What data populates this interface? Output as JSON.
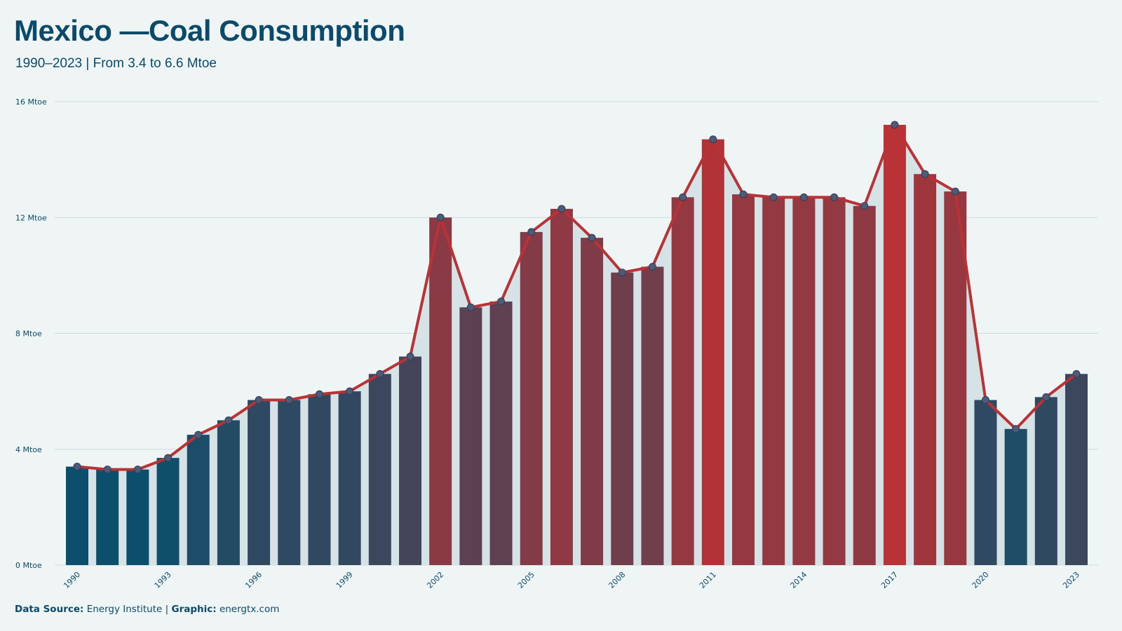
{
  "header": {
    "title": "Mexico —Coal Consumption",
    "subtitle": "1990–2023 | From 3.4 to 6.6 Mtoe"
  },
  "footer": {
    "source_label": "Data Source:",
    "source_value": "Energy Institute",
    "separator": "|",
    "graphic_label": "Graphic:",
    "graphic_value": "energtx.com"
  },
  "colors": {
    "background": "#eff5f5",
    "low": "#0b4f6c",
    "high": "#b83236",
    "line": "#b83236",
    "point_fill": "#4e5a76",
    "area_fill": "#d6e3e6",
    "grid": "#cfd9dc",
    "text": "#0b4a6b"
  },
  "chart_data": {
    "type": "bar",
    "title": "Mexico —Coal Consumption",
    "subtitle": "1990–2023 | From 3.4 to 6.6 Mtoe",
    "unit": "Mtoe",
    "categories": [
      "1990",
      "1991",
      "1992",
      "1993",
      "1994",
      "1995",
      "1996",
      "1997",
      "1998",
      "1999",
      "2000",
      "2001",
      "2002",
      "2003",
      "2004",
      "2005",
      "2006",
      "2007",
      "2008",
      "2009",
      "2010",
      "2011",
      "2012",
      "2013",
      "2014",
      "2015",
      "2016",
      "2017",
      "2018",
      "2019",
      "2020",
      "2021",
      "2022",
      "2023"
    ],
    "values": [
      3.4,
      3.3,
      3.3,
      3.7,
      4.5,
      5.0,
      5.7,
      5.7,
      5.9,
      6.0,
      6.6,
      7.2,
      12.0,
      8.9,
      9.1,
      11.5,
      12.3,
      11.3,
      10.1,
      10.3,
      12.7,
      14.7,
      12.8,
      12.7,
      12.7,
      12.7,
      12.4,
      15.2,
      13.5,
      12.9,
      5.7,
      4.7,
      5.8,
      6.6
    ],
    "x_tick_labels": [
      "1990",
      "1993",
      "1996",
      "1999",
      "2002",
      "2005",
      "2008",
      "2011",
      "2014",
      "2017",
      "2020",
      "2023"
    ],
    "y_ticks": [
      {
        "value": 0,
        "label": "0 Mtoe"
      },
      {
        "value": 4,
        "label": "4 Mtoe"
      },
      {
        "value": 8,
        "label": "8 Mtoe"
      },
      {
        "value": 12,
        "label": "12 Mtoe"
      },
      {
        "value": 16,
        "label": "16 Mtoe"
      }
    ],
    "ylim": [
      0,
      16
    ],
    "grid": true,
    "overlay": "line with points and shaded area"
  }
}
